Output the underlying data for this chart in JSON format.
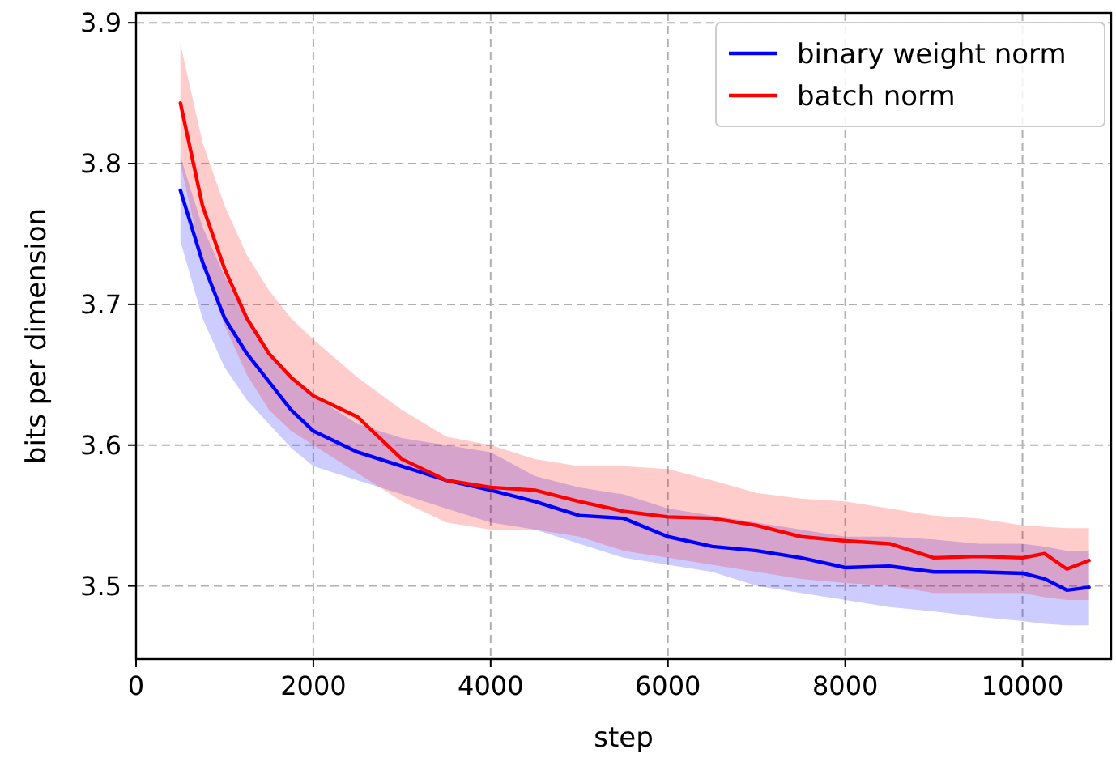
{
  "chart_data": {
    "type": "line",
    "xlabel": "step",
    "ylabel": "bits per dimension",
    "x": [
      500,
      750,
      1000,
      1250,
      1500,
      1750,
      2000,
      2500,
      3000,
      3500,
      4000,
      4500,
      5000,
      5500,
      6000,
      6500,
      7000,
      7500,
      8000,
      8500,
      9000,
      9500,
      10000,
      10250,
      10500,
      10750
    ],
    "series": [
      {
        "name": "binary weight norm",
        "color": "#0000ff",
        "values": [
          3.781,
          3.73,
          3.69,
          3.665,
          3.645,
          3.625,
          3.61,
          3.595,
          3.585,
          3.575,
          3.568,
          3.56,
          3.55,
          3.548,
          3.535,
          3.528,
          3.525,
          3.52,
          3.513,
          3.514,
          3.51,
          3.51,
          3.509,
          3.505,
          3.497,
          3.499
        ],
        "upper": [
          3.805,
          3.755,
          3.72,
          3.69,
          3.665,
          3.648,
          3.635,
          3.615,
          3.605,
          3.6,
          3.595,
          3.578,
          3.57,
          3.565,
          3.555,
          3.55,
          3.545,
          3.54,
          3.535,
          3.535,
          3.533,
          3.53,
          3.53,
          3.528,
          3.525,
          3.525
        ],
        "lower": [
          3.745,
          3.69,
          3.655,
          3.632,
          3.615,
          3.598,
          3.585,
          3.575,
          3.565,
          3.555,
          3.545,
          3.54,
          3.53,
          3.52,
          3.515,
          3.51,
          3.5,
          3.495,
          3.49,
          3.485,
          3.482,
          3.478,
          3.475,
          3.473,
          3.472,
          3.472
        ]
      },
      {
        "name": "batch norm",
        "color": "#ff0000",
        "values": [
          3.843,
          3.77,
          3.725,
          3.69,
          3.665,
          3.648,
          3.635,
          3.62,
          3.59,
          3.575,
          3.57,
          3.568,
          3.56,
          3.553,
          3.549,
          3.548,
          3.543,
          3.535,
          3.532,
          3.53,
          3.52,
          3.521,
          3.52,
          3.523,
          3.512,
          3.518
        ],
        "upper": [
          3.885,
          3.815,
          3.77,
          3.735,
          3.71,
          3.69,
          3.675,
          3.648,
          3.625,
          3.606,
          3.6,
          3.59,
          3.585,
          3.585,
          3.583,
          3.575,
          3.566,
          3.562,
          3.56,
          3.555,
          3.55,
          3.548,
          3.543,
          3.542,
          3.541,
          3.541
        ],
        "lower": [
          3.8,
          3.73,
          3.685,
          3.65,
          3.625,
          3.61,
          3.6,
          3.58,
          3.56,
          3.545,
          3.54,
          3.54,
          3.535,
          3.525,
          3.52,
          3.515,
          3.51,
          3.505,
          3.502,
          3.5,
          3.495,
          3.495,
          3.495,
          3.492,
          3.49,
          3.49
        ]
      }
    ],
    "xlim": [
      0,
      11000
    ],
    "xticks": [
      0,
      2000,
      4000,
      6000,
      8000,
      10000
    ],
    "ylim": [
      3.448,
      3.907
    ],
    "yticks": [
      {
        "value": 3.5,
        "label": "3.5"
      },
      {
        "value": 3.6,
        "label": "3.6"
      },
      {
        "value": 3.7,
        "label": "3.7"
      },
      {
        "value": 3.8,
        "label": "3.8"
      },
      {
        "value": 3.9,
        "label": "3.9"
      }
    ],
    "grid": true,
    "legend": "top right",
    "line_style": "solid",
    "marker": "none"
  }
}
